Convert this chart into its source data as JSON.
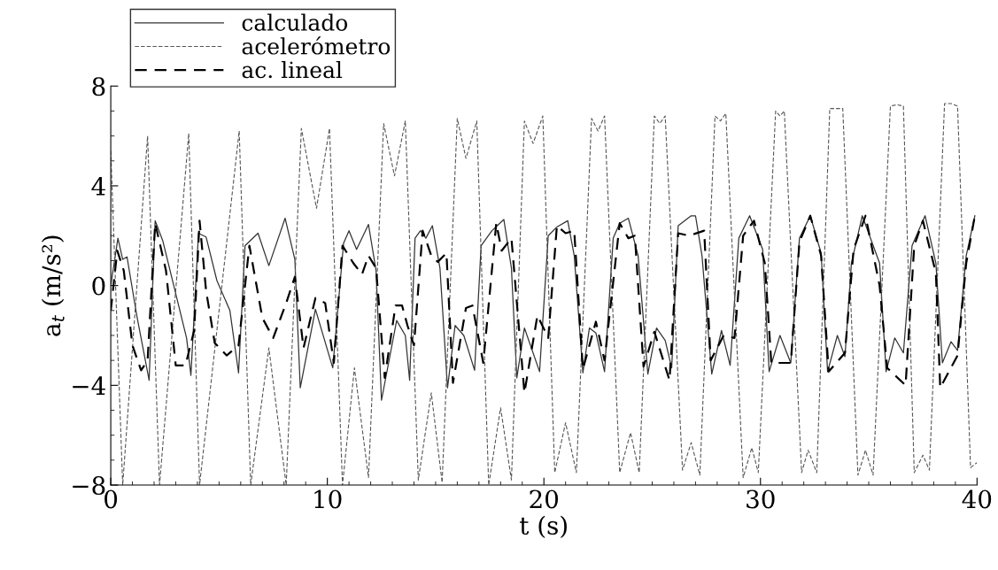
{
  "chart_data": {
    "type": "line",
    "xlabel": "t (s)",
    "ylabel": "a$_{t}$ (m/s²)",
    "xlim": [
      0,
      40
    ],
    "ylim": [
      -8,
      8
    ],
    "xticks": [
      0,
      10,
      20,
      30,
      40
    ],
    "yticks": [
      -8,
      -4,
      0,
      4,
      8
    ],
    "grid": false,
    "legend": "top left",
    "marker": "none",
    "series": [
      {
        "name": "calculado",
        "color": "#333333",
        "line_style": "solid",
        "x": [
          0,
          0.33,
          0.55,
          0.75,
          1.2,
          1.77,
          2.05,
          2.4,
          3.5,
          3.7,
          4.05,
          4.4,
          4.9,
          5.5,
          5.9,
          6.2,
          6.8,
          7.3,
          8.05,
          8.5,
          8.75,
          9.45,
          10.25,
          10.75,
          11.0,
          11.35,
          11.9,
          12.25,
          12.5,
          13.2,
          13.6,
          13.8,
          14.05,
          14.3,
          14.55,
          14.85,
          15.2,
          15.55,
          15.9,
          16.3,
          16.8,
          17.1,
          17.6,
          18.15,
          18.5,
          18.75,
          19.1,
          19.8,
          20.2,
          20.6,
          21.1,
          21.4,
          21.8,
          22.1,
          22.4,
          22.8,
          23.2,
          23.5,
          23.9,
          24.35,
          24.8,
          25.2,
          25.6,
          25.9,
          26.2,
          26.8,
          27.0,
          27.3,
          27.75,
          28.2,
          28.6,
          29.0,
          29.5,
          30.1,
          30.4,
          30.9,
          31.4,
          31.8,
          32.3,
          32.8,
          33.1,
          33.55,
          33.9,
          34.2,
          34.7,
          35.5,
          35.8,
          36.2,
          36.6,
          37.0,
          37.6,
          38.1,
          38.4,
          38.8,
          39.1,
          39.5,
          39.9
        ],
        "values": [
          0,
          1.9,
          1.05,
          1.15,
          -1.2,
          -3.8,
          2.6,
          1.8,
          -2.1,
          -3.6,
          2.1,
          1.95,
          0.2,
          -1.0,
          -3.5,
          1.6,
          2.1,
          0.8,
          2.7,
          1.05,
          -4.1,
          -0.95,
          -3.3,
          1.7,
          2.2,
          1.45,
          2.45,
          0.6,
          -4.6,
          -1.4,
          -2.0,
          -3.8,
          1.9,
          2.2,
          1.9,
          2.4,
          0.7,
          -4.1,
          -1.6,
          -2.0,
          -3.4,
          1.6,
          2.2,
          2.65,
          0.7,
          -3.7,
          -1.7,
          -3.45,
          2.0,
          2.35,
          2.6,
          1.2,
          -3.5,
          -1.7,
          -1.9,
          -3.45,
          1.9,
          2.5,
          2.7,
          1.2,
          -3.55,
          -1.7,
          -2.2,
          -3.3,
          2.4,
          2.8,
          2.8,
          1.2,
          -3.55,
          -1.8,
          -3.2,
          1.9,
          2.8,
          1.45,
          -3.45,
          -2.0,
          -3.1,
          1.9,
          2.8,
          1.3,
          -3.45,
          -2.0,
          -2.85,
          0.9,
          2.8,
          0.9,
          -3.45,
          -2.1,
          -2.7,
          1.6,
          2.8,
          0.9,
          -3.1,
          -2.25,
          -2.6,
          1.2,
          2.8
        ]
      },
      {
        "name": "acelerómetro",
        "color": "#555555",
        "line_style": "dashed",
        "x": [
          0,
          0.55,
          1.7,
          2.25,
          3.6,
          4.1,
          5.93,
          6.46,
          7.3,
          8.1,
          8.8,
          9.5,
          10.1,
          10.7,
          11.25,
          11.9,
          12.6,
          13.1,
          13.6,
          14.2,
          14.8,
          15.3,
          16.0,
          16.4,
          16.9,
          17.45,
          18.0,
          18.5,
          19.1,
          19.5,
          19.95,
          20.5,
          21.0,
          21.5,
          22.2,
          22.5,
          22.8,
          23.5,
          24.0,
          24.4,
          25.1,
          25.35,
          25.6,
          26.4,
          26.8,
          27.2,
          27.9,
          28.15,
          28.4,
          29.2,
          29.6,
          29.9,
          30.7,
          30.9,
          31.1,
          31.9,
          32.2,
          32.6,
          33.2,
          33.5,
          33.8,
          34.5,
          34.85,
          35.2,
          36.0,
          36.3,
          36.6,
          37.1,
          37.5,
          37.8,
          38.5,
          38.8,
          39.1,
          39.7,
          40
        ],
        "values": [
          5.4,
          -8,
          6.0,
          -8,
          6.1,
          -8,
          6.2,
          -8,
          -2.5,
          -8,
          6.3,
          3.1,
          6.3,
          -8,
          -3.3,
          -7.7,
          6.5,
          4.4,
          6.6,
          -7.8,
          -4.3,
          -7.9,
          6.7,
          5.1,
          6.6,
          -8,
          -4.9,
          -7.8,
          6.6,
          5.7,
          6.8,
          -7.5,
          -5.5,
          -7.5,
          6.7,
          6.2,
          6.8,
          -7.5,
          -5.9,
          -7.5,
          6.8,
          6.5,
          6.8,
          -7.4,
          -6.3,
          -7.6,
          6.8,
          6.6,
          6.9,
          -7.7,
          -6.5,
          -7.5,
          7.0,
          6.8,
          7.0,
          -7.5,
          -6.6,
          -7.5,
          7.1,
          7.1,
          7.1,
          -7.6,
          -6.6,
          -7.6,
          7.2,
          7.25,
          7.2,
          -7.5,
          -6.8,
          -7.4,
          7.3,
          7.3,
          7.2,
          -7.3,
          -7.1
        ]
      },
      {
        "name": "ac. lineal",
        "color": "#000000",
        "line_style": "dashed",
        "x": [
          0,
          0.3,
          0.6,
          1.0,
          1.4,
          1.7,
          2.05,
          2.55,
          3.0,
          3.45,
          3.85,
          4.1,
          4.4,
          4.8,
          5.35,
          5.9,
          6.4,
          7.0,
          7.5,
          8.1,
          8.5,
          8.9,
          9.45,
          9.9,
          10.3,
          10.7,
          11.2,
          11.6,
          11.9,
          12.25,
          12.65,
          13.15,
          13.45,
          13.7,
          14.0,
          14.4,
          14.8,
          15.1,
          15.5,
          15.8,
          16.4,
          16.7,
          17.2,
          17.8,
          18.05,
          18.5,
          19.1,
          19.7,
          20.2,
          20.6,
          21.0,
          21.4,
          21.8,
          22.4,
          22.8,
          23.5,
          23.9,
          24.2,
          24.6,
          25.1,
          25.8,
          26.2,
          26.7,
          27.4,
          27.7,
          28.3,
          28.8,
          29.2,
          29.7,
          30.2,
          30.5,
          31.4,
          31.8,
          32.3,
          32.8,
          33.15,
          33.9,
          34.3,
          34.85,
          35.5,
          35.85,
          36.7,
          37.1,
          37.5,
          38.1,
          38.3,
          39.1,
          39.5,
          39.9
        ],
        "values": [
          -1,
          1.4,
          0.6,
          -2.4,
          -3.4,
          -3.0,
          2.5,
          0.6,
          -3.2,
          -3.2,
          -1.8,
          2.6,
          -0.2,
          -2.3,
          -2.8,
          -2.4,
          1.6,
          -1.3,
          -2.1,
          -0.7,
          0.35,
          -2.5,
          -0.5,
          -0.7,
          -3.1,
          1.6,
          0.9,
          0.45,
          1.2,
          0.7,
          -3.7,
          -0.8,
          -0.8,
          -1.6,
          -2.4,
          2.2,
          1.2,
          0.95,
          1.3,
          -3.9,
          -0.9,
          -0.8,
          -3.1,
          2.5,
          1.4,
          1.9,
          -4.3,
          -1.2,
          -2.1,
          2.4,
          2.1,
          2.2,
          -3.35,
          -1.45,
          -3.0,
          2.5,
          1.9,
          2.0,
          -3.25,
          -1.85,
          -3.8,
          2.1,
          2.0,
          2.2,
          -3.0,
          -2.0,
          -2.1,
          2.0,
          2.6,
          0.9,
          -3.1,
          -3.1,
          1.75,
          2.8,
          1.2,
          -3.45,
          -2.7,
          1.45,
          2.8,
          0,
          -3.3,
          -4.0,
          1.6,
          2.6,
          0.5,
          -4.1,
          -2.8,
          0.9,
          2.8
        ]
      }
    ]
  }
}
